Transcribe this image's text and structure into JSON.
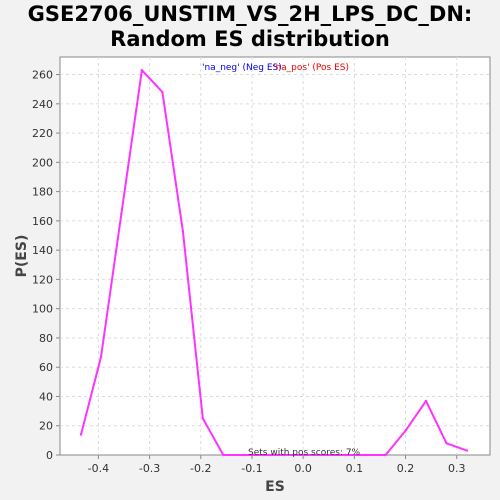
{
  "chart_data": {
    "type": "line",
    "title": [
      "GSE2706_UNSTIM_VS_2H_LPS_DC_DN:",
      "Random ES distribution"
    ],
    "xlabel": "ES",
    "ylabel": "P(ES)",
    "xlim": [
      -0.475,
      0.365
    ],
    "ylim": [
      0,
      272
    ],
    "xticks": [
      -0.4,
      -0.3,
      -0.2,
      -0.1,
      0.0,
      0.1,
      0.2,
      0.3
    ],
    "xtick_labels": [
      "-0.4",
      "-0.3",
      "-0.2",
      "-0.1",
      "0.0",
      "0.1",
      "0.2",
      "0.3"
    ],
    "yticks": [
      0,
      20,
      40,
      60,
      80,
      100,
      120,
      140,
      160,
      180,
      200,
      220,
      240,
      260
    ],
    "grid": true,
    "series": [
      {
        "name": "'na_neg' (Neg ES)",
        "color": "#ff33ff",
        "x": [
          -0.434,
          -0.395,
          -0.355,
          -0.315,
          -0.275,
          -0.235,
          -0.196,
          -0.156,
          -0.117,
          -0.077,
          -0.037,
          0.003,
          0.043,
          0.082,
          0.122,
          0.161,
          0.201,
          0.24,
          0.28,
          0.32
        ],
        "y": [
          14,
          67,
          165,
          263,
          248,
          153,
          25,
          0,
          0,
          0,
          0,
          0,
          0,
          0,
          0,
          0,
          17,
          37,
          8,
          3
        ]
      }
    ],
    "legend": [
      {
        "label": "'na_neg' (Neg ES)",
        "color": "#0000ee"
      },
      {
        "label": "'na_pos' (Pos ES)",
        "color": "#ee0000"
      }
    ],
    "annotation": "Sets with pos scores: 7%"
  }
}
